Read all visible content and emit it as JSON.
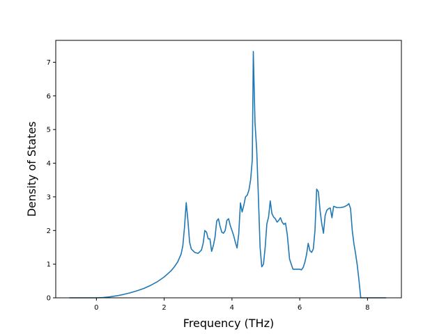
{
  "chart_data": {
    "type": "line",
    "title": "",
    "xlabel": "Frequency (THz)",
    "ylabel": "Density of States",
    "xlim": [
      -1.2,
      9.0
    ],
    "ylim": [
      0,
      7.65
    ],
    "xticks": [
      0,
      2,
      4,
      6,
      8
    ],
    "yticks": [
      0,
      1,
      2,
      3,
      4,
      5,
      6,
      7
    ],
    "grid": false,
    "legend": "none",
    "series": [
      {
        "color": "#1f77b4",
        "x": [
          -0.8,
          -0.4,
          0.0,
          0.2,
          0.4,
          0.6,
          0.8,
          1.0,
          1.2,
          1.4,
          1.6,
          1.8,
          2.0,
          2.2,
          2.3,
          2.4,
          2.5,
          2.55,
          2.6,
          2.65,
          2.7,
          2.75,
          2.8,
          2.9,
          3.0,
          3.1,
          3.15,
          3.2,
          3.25,
          3.3,
          3.35,
          3.4,
          3.45,
          3.5,
          3.55,
          3.6,
          3.65,
          3.7,
          3.75,
          3.8,
          3.85,
          3.9,
          3.95,
          4.0,
          4.05,
          4.1,
          4.15,
          4.2,
          4.25,
          4.3,
          4.35,
          4.4,
          4.45,
          4.5,
          4.55,
          4.6,
          4.63,
          4.68,
          4.73,
          4.78,
          4.83,
          4.88,
          4.93,
          4.98,
          5.03,
          5.08,
          5.13,
          5.18,
          5.23,
          5.28,
          5.33,
          5.38,
          5.43,
          5.48,
          5.53,
          5.58,
          5.63,
          5.7,
          5.8,
          5.9,
          6.0,
          6.05,
          6.1,
          6.15,
          6.2,
          6.25,
          6.3,
          6.35,
          6.4,
          6.45,
          6.5,
          6.55,
          6.6,
          6.65,
          6.7,
          6.75,
          6.8,
          6.85,
          6.9,
          6.95,
          7.0,
          7.05,
          7.1,
          7.2,
          7.3,
          7.4,
          7.45,
          7.5,
          7.55,
          7.6,
          7.65,
          7.7,
          7.75,
          7.8,
          7.9,
          8.2,
          8.55
        ],
        "values": [
          0.0,
          0.0,
          0.0,
          0.01,
          0.03,
          0.06,
          0.1,
          0.15,
          0.21,
          0.28,
          0.37,
          0.48,
          0.62,
          0.8,
          0.92,
          1.07,
          1.3,
          1.55,
          2.1,
          2.83,
          2.3,
          1.65,
          1.45,
          1.35,
          1.32,
          1.42,
          1.62,
          2.0,
          1.95,
          1.75,
          1.75,
          1.38,
          1.55,
          1.8,
          2.28,
          2.35,
          2.12,
          1.95,
          1.92,
          2.0,
          2.3,
          2.35,
          2.15,
          2.0,
          1.85,
          1.65,
          1.48,
          1.9,
          2.82,
          2.55,
          2.75,
          3.0,
          3.05,
          3.2,
          3.5,
          4.1,
          7.32,
          5.2,
          4.4,
          3.0,
          1.5,
          0.92,
          1.0,
          1.5,
          2.2,
          2.4,
          2.88,
          2.5,
          2.4,
          2.35,
          2.25,
          2.3,
          2.38,
          2.25,
          2.18,
          2.22,
          1.9,
          1.15,
          0.85,
          0.85,
          0.85,
          0.83,
          0.9,
          1.05,
          1.28,
          1.62,
          1.4,
          1.35,
          1.45,
          2.0,
          3.23,
          3.15,
          2.6,
          2.2,
          1.92,
          2.45,
          2.6,
          2.65,
          2.67,
          2.38,
          2.72,
          2.7,
          2.68,
          2.68,
          2.7,
          2.75,
          2.8,
          2.65,
          2.0,
          1.6,
          1.3,
          0.95,
          0.5,
          0.0,
          0.0,
          0.0,
          0.0
        ]
      }
    ]
  }
}
